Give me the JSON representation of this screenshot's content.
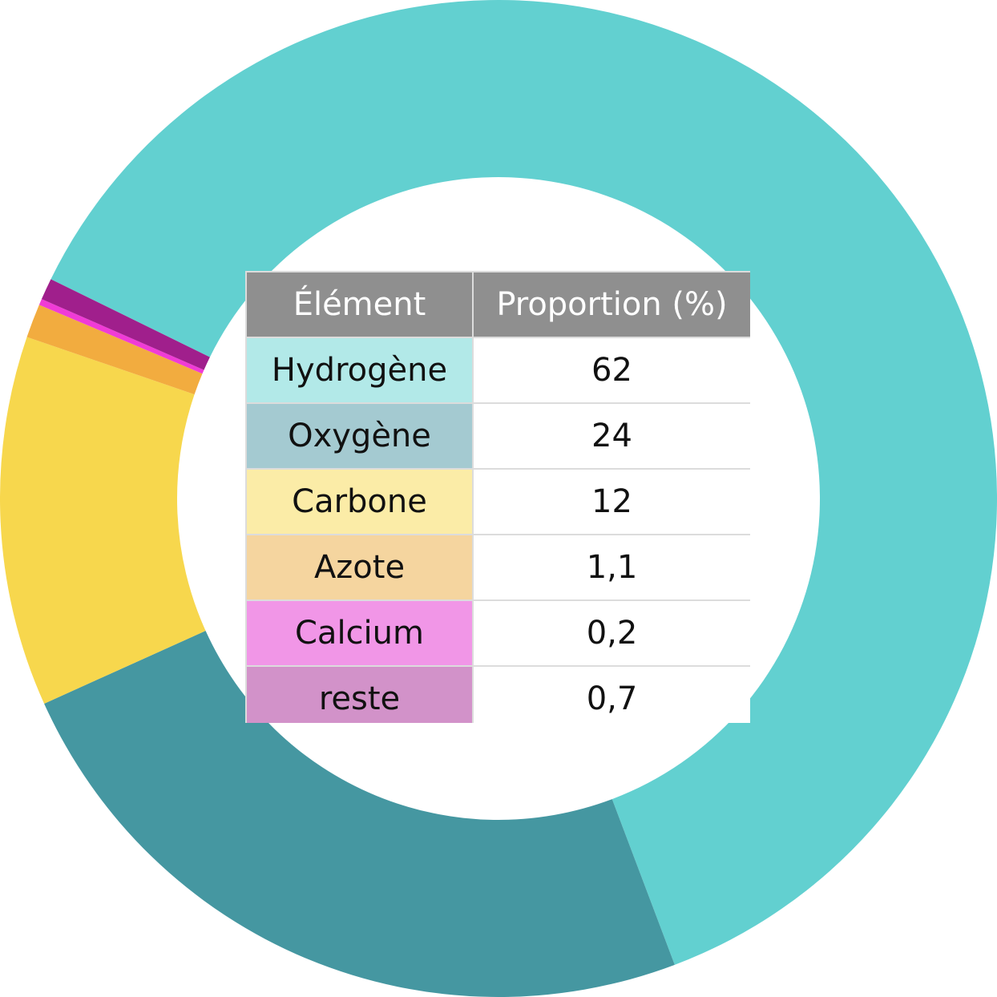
{
  "chart_data": {
    "type": "pie",
    "title": "",
    "slices": [
      {
        "label": "Hydrogène",
        "value": 62,
        "color": "#62d0d0"
      },
      {
        "label": "Oxygène",
        "value": 24,
        "color": "#4597a1"
      },
      {
        "label": "Carbone",
        "value": 12,
        "color": "#f7d74d"
      },
      {
        "label": "Azote",
        "value": 1.1,
        "color": "#f2ac3f"
      },
      {
        "label": "Calcium",
        "value": 0.2,
        "color": "#f03bd6"
      },
      {
        "label": "reste",
        "value": 0.7,
        "color": "#a01f8c"
      }
    ],
    "colors": {
      "table_header": "#8f8f8f",
      "table_border": "#dcdcdc"
    }
  },
  "table": {
    "headers": [
      "Élément",
      "Proportion (%)"
    ],
    "rows": [
      {
        "element": "Hydrogène",
        "proportion": "62",
        "bg": "#b2e9e8"
      },
      {
        "element": "Oxygène",
        "proportion": "24",
        "bg": "#a4cad1"
      },
      {
        "element": "Carbone",
        "proportion": "12",
        "bg": "#fbeca7"
      },
      {
        "element": "Azote",
        "proportion": "1,1",
        "bg": "#f5d59f"
      },
      {
        "element": "Calcium",
        "proportion": "0,2",
        "bg": "#f196e7"
      },
      {
        "element": "reste",
        "proportion": "0,7",
        "bg": "#d292c9"
      }
    ]
  }
}
